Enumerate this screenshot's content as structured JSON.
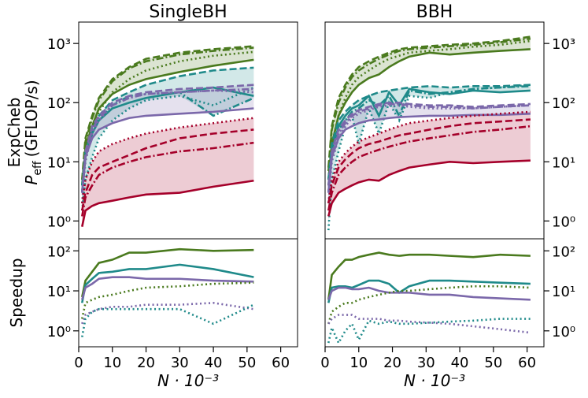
{
  "chart_data": [
    {
      "type": "line",
      "title": "SingleBH",
      "ylabel": "ExpCheb",
      "ylabel2": {
        "symbol": "P",
        "subscript": "eff",
        "unit": "(GFLOP/s)"
      },
      "yaxis": "left",
      "ylog": true,
      "bands": true,
      "x": [
        1,
        2,
        4,
        6,
        10,
        15,
        20,
        30,
        40,
        52
      ],
      "xlim": [
        0,
        65
      ],
      "ylim": [
        0.5,
        2300
      ],
      "yticks": [
        {
          "value": 1,
          "label": "10⁰"
        },
        {
          "value": 10,
          "label": "10¹"
        },
        {
          "value": 100,
          "label": "10²"
        },
        {
          "value": 1000,
          "label": "10³"
        }
      ],
      "series": [
        {
          "color": "#4a7a1e",
          "dash": "solid",
          "values": [
            3,
            18,
            40,
            80,
            140,
            200,
            250,
            330,
            420,
            530
          ]
        },
        {
          "color": "#4a7a1e",
          "dash": "dashed",
          "values": [
            5,
            25,
            60,
            120,
            250,
            400,
            550,
            700,
            800,
            900
          ]
        },
        {
          "color": "#4a7a1e",
          "dash": "dashdot",
          "values": [
            4,
            22,
            55,
            110,
            230,
            380,
            500,
            650,
            750,
            850
          ]
        },
        {
          "color": "#4a7a1e",
          "dash": "dotted",
          "values": [
            2,
            12,
            35,
            70,
            150,
            250,
            350,
            500,
            620,
            720
          ]
        },
        {
          "color": "#1f8a8a",
          "dash": "solid",
          "values": [
            3,
            12,
            30,
            50,
            80,
            100,
            120,
            150,
            180,
            130
          ]
        },
        {
          "color": "#1f8a8a",
          "dash": "dashed",
          "values": [
            4,
            15,
            35,
            60,
            110,
            150,
            200,
            280,
            350,
            390
          ]
        },
        {
          "color": "#1f8a8a",
          "dash": "dashdot",
          "values": [
            3,
            12,
            30,
            50,
            90,
            130,
            140,
            150,
            60,
            120
          ]
        },
        {
          "color": "#1f8a8a",
          "dash": "dotted",
          "values": [
            1.5,
            5,
            12,
            25,
            50,
            80,
            110,
            130,
            90,
            180
          ]
        },
        {
          "color": "#7b68aa",
          "dash": "solid",
          "values": [
            3,
            12,
            25,
            35,
            45,
            55,
            60,
            65,
            70,
            80
          ]
        },
        {
          "color": "#7b68aa",
          "dash": "dashed",
          "values": [
            3,
            15,
            40,
            60,
            100,
            130,
            150,
            170,
            180,
            200
          ]
        },
        {
          "color": "#7b68aa",
          "dash": "dashdot",
          "values": [
            3,
            13,
            35,
            55,
            90,
            120,
            140,
            150,
            160,
            170
          ]
        },
        {
          "color": "#7b68aa",
          "dash": "dotted",
          "values": [
            2,
            10,
            30,
            50,
            90,
            120,
            140,
            150,
            160,
            150
          ]
        },
        {
          "color": "#a5002a",
          "dash": "solid",
          "values": [
            0.8,
            1.5,
            1.8,
            2,
            2.2,
            2.5,
            2.8,
            3,
            3.8,
            4.8
          ]
        },
        {
          "color": "#a5002a",
          "dash": "dashed",
          "values": [
            1.5,
            3,
            6,
            8,
            10,
            13,
            17,
            25,
            30,
            35
          ]
        },
        {
          "color": "#a5002a",
          "dash": "dashdot",
          "values": [
            1.2,
            2.5,
            4,
            6,
            8,
            10,
            12,
            15,
            17,
            21
          ]
        },
        {
          "color": "#a5002a",
          "dash": "dotted",
          "values": [
            2,
            5,
            10,
            15,
            20,
            25,
            30,
            38,
            45,
            55
          ]
        }
      ]
    },
    {
      "type": "line",
      "title": "BBH",
      "yaxis": "right",
      "ylog": true,
      "bands": true,
      "x": [
        1,
        2,
        4,
        6,
        8,
        10,
        13,
        16,
        19,
        22,
        25,
        31,
        37,
        44,
        52,
        61
      ],
      "xlim": [
        0,
        65
      ],
      "ylim": [
        0.5,
        2300
      ],
      "yticks": [
        {
          "value": 1,
          "label": "10⁰"
        },
        {
          "value": 10,
          "label": "10¹"
        },
        {
          "value": 100,
          "label": "10²"
        },
        {
          "value": 1000,
          "label": "10³"
        }
      ],
      "series": [
        {
          "color": "#4a7a1e",
          "dash": "solid",
          "values": [
            5,
            20,
            60,
            100,
            150,
            200,
            260,
            300,
            400,
            500,
            600,
            700,
            650,
            700,
            750,
            800
          ]
        },
        {
          "color": "#4a7a1e",
          "dash": "dashed",
          "values": [
            8,
            40,
            120,
            200,
            300,
            400,
            500,
            600,
            700,
            800,
            850,
            900,
            950,
            1000,
            1100,
            1300
          ]
        },
        {
          "color": "#4a7a1e",
          "dash": "dashdot",
          "values": [
            7,
            35,
            100,
            180,
            270,
            350,
            450,
            550,
            650,
            750,
            800,
            850,
            900,
            950,
            1050,
            1200
          ]
        },
        {
          "color": "#4a7a1e",
          "dash": "dotted",
          "values": [
            4,
            20,
            60,
            120,
            200,
            270,
            350,
            450,
            550,
            620,
            700,
            750,
            800,
            880,
            950,
            1100
          ]
        },
        {
          "color": "#1f8a8a",
          "dash": "solid",
          "values": [
            4,
            15,
            40,
            60,
            80,
            90,
            130,
            60,
            150,
            90,
            170,
            150,
            140,
            160,
            150,
            160
          ]
        },
        {
          "color": "#1f8a8a",
          "dash": "dashed",
          "values": [
            5,
            20,
            50,
            70,
            90,
            110,
            130,
            150,
            160,
            170,
            180,
            190,
            180,
            190,
            190,
            200
          ]
        },
        {
          "color": "#1f8a8a",
          "dash": "dashdot",
          "values": [
            3,
            15,
            35,
            50,
            70,
            80,
            110,
            90,
            130,
            60,
            160,
            140,
            150,
            170,
            180,
            190
          ]
        },
        {
          "color": "#1f8a8a",
          "dash": "dotted",
          "values": [
            0.7,
            5,
            15,
            40,
            60,
            20,
            80,
            30,
            100,
            50,
            130,
            120,
            150,
            170,
            180,
            200
          ]
        },
        {
          "color": "#7b68aa",
          "dash": "solid",
          "values": [
            3,
            12,
            25,
            35,
            40,
            45,
            50,
            52,
            55,
            57,
            58,
            60,
            60,
            62,
            62,
            65
          ]
        },
        {
          "color": "#7b68aa",
          "dash": "dashed",
          "values": [
            4,
            15,
            35,
            50,
            65,
            75,
            85,
            95,
            100,
            100,
            95,
            90,
            90,
            85,
            90,
            95
          ]
        },
        {
          "color": "#7b68aa",
          "dash": "dashdot",
          "values": [
            3,
            13,
            30,
            45,
            60,
            70,
            80,
            90,
            95,
            95,
            90,
            85,
            85,
            80,
            85,
            90
          ]
        },
        {
          "color": "#7b68aa",
          "dash": "dotted",
          "values": [
            2,
            10,
            25,
            40,
            55,
            65,
            75,
            85,
            90,
            90,
            85,
            80,
            80,
            80,
            85,
            90
          ]
        },
        {
          "color": "#a5002a",
          "dash": "solid",
          "values": [
            1.2,
            2,
            3,
            3.5,
            4,
            4.5,
            5,
            4.8,
            6,
            7,
            8,
            9,
            10,
            9.5,
            10,
            10.5
          ]
        },
        {
          "color": "#a5002a",
          "dash": "dashed",
          "values": [
            2,
            4,
            8,
            11,
            14,
            17,
            20,
            22,
            25,
            28,
            30,
            35,
            40,
            45,
            48,
            52
          ]
        },
        {
          "color": "#a5002a",
          "dash": "dashdot",
          "values": [
            1.5,
            3,
            6,
            8,
            10,
            12,
            14,
            16,
            18,
            20,
            22,
            25,
            28,
            32,
            35,
            40
          ]
        },
        {
          "color": "#a5002a",
          "dash": "dotted",
          "values": [
            2,
            5,
            10,
            14,
            18,
            22,
            26,
            30,
            35,
            40,
            45,
            50,
            55,
            60,
            65,
            70
          ]
        }
      ]
    },
    {
      "type": "line",
      "ylabel": "Speedup",
      "xlabel": "N · 10⁻³",
      "yaxis": "left",
      "ylog": true,
      "bands": false,
      "x": [
        1,
        2,
        4,
        6,
        10,
        15,
        20,
        30,
        40,
        52
      ],
      "xlim": [
        0,
        65
      ],
      "xticks": [
        0,
        10,
        20,
        30,
        40,
        50,
        60
      ],
      "ylim": [
        0.4,
        200
      ],
      "yticks": [
        {
          "value": 1,
          "label": "10⁰"
        },
        {
          "value": 10,
          "label": "10¹"
        },
        {
          "value": 100,
          "label": "10²"
        }
      ],
      "series": [
        {
          "color": "#4a7a1e",
          "dash": "solid",
          "values": [
            7,
            18,
            30,
            50,
            60,
            90,
            90,
            110,
            100,
            105
          ]
        },
        {
          "color": "#1f8a8a",
          "dash": "solid",
          "values": [
            5,
            14,
            20,
            28,
            30,
            35,
            35,
            45,
            35,
            22
          ]
        },
        {
          "color": "#7b68aa",
          "dash": "solid",
          "values": [
            6,
            12,
            15,
            20,
            22,
            22,
            20,
            20,
            18,
            17
          ]
        },
        {
          "color": "#4a7a1e",
          "dash": "dotted",
          "values": [
            2,
            5,
            6,
            7,
            8,
            10,
            12,
            13,
            15,
            16
          ]
        },
        {
          "color": "#7b68aa",
          "dash": "dotted",
          "values": [
            1.5,
            2.5,
            3,
            3.5,
            4,
            4,
            4.5,
            4.5,
            5,
            3.5
          ]
        },
        {
          "color": "#1f8a8a",
          "dash": "dotted",
          "values": [
            0.7,
            2,
            3,
            3.5,
            3.5,
            3.5,
            3.5,
            3.5,
            1.5,
            4.5
          ]
        }
      ]
    },
    {
      "type": "line",
      "xlabel": "N · 10⁻³",
      "yaxis": "right",
      "ylog": true,
      "bands": false,
      "x": [
        1,
        2,
        4,
        6,
        8,
        10,
        13,
        16,
        19,
        22,
        25,
        31,
        37,
        44,
        52,
        61
      ],
      "xlim": [
        0,
        65
      ],
      "xticks": [
        0,
        10,
        20,
        30,
        40,
        50,
        60
      ],
      "ylim": [
        0.4,
        200
      ],
      "yticks": [
        {
          "value": 1,
          "label": "10⁰"
        },
        {
          "value": 10,
          "label": "10¹"
        },
        {
          "value": 100,
          "label": "10²"
        }
      ],
      "series": [
        {
          "color": "#4a7a1e",
          "dash": "solid",
          "values": [
            6,
            25,
            40,
            60,
            60,
            70,
            80,
            90,
            80,
            75,
            80,
            80,
            75,
            70,
            80,
            75
          ]
        },
        {
          "color": "#1f8a8a",
          "dash": "solid",
          "values": [
            5,
            12,
            13,
            13,
            12,
            14,
            18,
            18,
            15,
            9,
            13,
            18,
            18,
            17,
            16,
            15
          ]
        },
        {
          "color": "#7b68aa",
          "dash": "solid",
          "values": [
            6,
            10,
            12,
            12,
            11,
            11,
            12,
            10,
            9,
            9,
            9,
            8,
            8,
            7,
            6.5,
            6
          ]
        },
        {
          "color": "#4a7a1e",
          "dash": "dotted",
          "values": [
            1.5,
            3,
            4,
            5,
            5,
            6,
            7,
            8,
            9,
            10,
            10,
            11,
            12,
            13,
            13,
            12
          ]
        },
        {
          "color": "#7b68aa",
          "dash": "dotted",
          "values": [
            1.5,
            2,
            2.5,
            2.5,
            2.5,
            2,
            2,
            2,
            1.8,
            1.8,
            1.7,
            1.6,
            1.5,
            1.3,
            1.1,
            0.9
          ]
        },
        {
          "color": "#1f8a8a",
          "dash": "dotted",
          "values": [
            0.5,
            1.2,
            0.5,
            1,
            1.5,
            0.6,
            1.8,
            1.5,
            1.7,
            1.5,
            1.5,
            1.6,
            1.7,
            1.8,
            2,
            2
          ]
        }
      ]
    }
  ]
}
